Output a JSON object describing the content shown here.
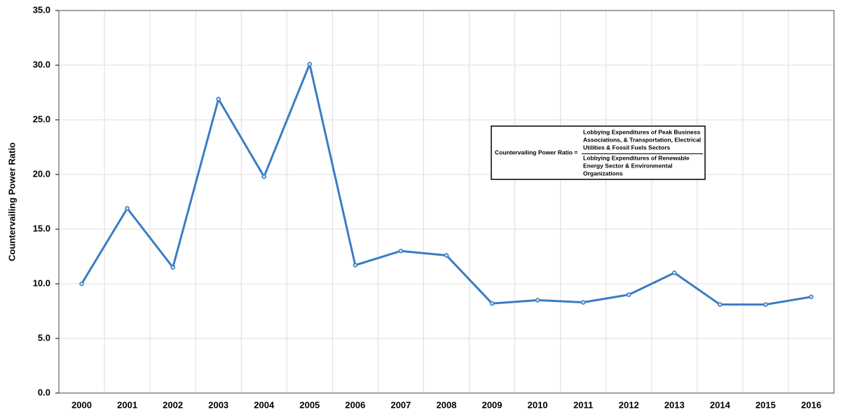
{
  "chart_data": {
    "type": "line",
    "y_label": "Countervailing Power Ratio",
    "categories": [
      "2000",
      "2001",
      "2002",
      "2003",
      "2004",
      "2005",
      "2006",
      "2007",
      "2008",
      "2009",
      "2010",
      "2011",
      "2012",
      "2013",
      "2014",
      "2015",
      "2016"
    ],
    "series": [
      {
        "color": "#3a7cc4",
        "values": [
          10.0,
          16.9,
          11.5,
          26.9,
          19.8,
          30.1,
          11.7,
          13.0,
          12.6,
          8.2,
          8.5,
          8.3,
          9.0,
          11.0,
          8.1,
          8.1,
          8.8
        ]
      }
    ],
    "ylim": [
      0,
      35
    ],
    "yticks": [
      {
        "value": 0,
        "label": "0.0"
      },
      {
        "value": 5,
        "label": "5.0"
      },
      {
        "value": 10,
        "label": "10.0"
      },
      {
        "value": 15,
        "label": "15.0"
      },
      {
        "value": 20,
        "label": "20.0"
      },
      {
        "value": 25,
        "label": "25.0"
      },
      {
        "value": 30,
        "label": "30.0"
      },
      {
        "value": 35,
        "label": "35.0"
      }
    ],
    "grid": true,
    "annotation": {
      "label": "Countervailing Power Ratio =",
      "numerator": [
        "Lobbying Expenditures of Peak Business",
        "Associations, & Transportation, Electrical",
        "Utilities & Fossil Fuels Sectors"
      ],
      "denominator": [
        "Lobbying Expenditures of Renewable",
        "Energy Sector & Environmental",
        "Organizations"
      ]
    }
  }
}
